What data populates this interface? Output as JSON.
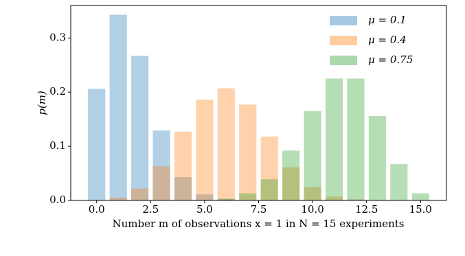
{
  "chart_data": {
    "type": "bar",
    "x": [
      0,
      1,
      2,
      3,
      4,
      5,
      6,
      7,
      8,
      9,
      10,
      11,
      12,
      13,
      14,
      15
    ],
    "series": [
      {
        "name": "μ = 0.1",
        "color": "#1f77b4",
        "values": [
          0.206,
          0.343,
          0.267,
          0.129,
          0.043,
          0.011,
          0.002,
          0.0,
          0,
          0,
          0,
          0,
          0,
          0,
          0,
          0
        ]
      },
      {
        "name": "μ = 0.4",
        "color": "#ff7f0e",
        "values": [
          0.0005,
          0.005,
          0.022,
          0.063,
          0.127,
          0.186,
          0.207,
          0.177,
          0.118,
          0.061,
          0.025,
          0.007,
          0.002,
          0.0003,
          0,
          0
        ]
      },
      {
        "name": "μ = 0.75",
        "color": "#2ca02c",
        "values": [
          0,
          0,
          0,
          0,
          0,
          0.001,
          0.003,
          0.013,
          0.039,
          0.092,
          0.165,
          0.225,
          0.225,
          0.156,
          0.067,
          0.013
        ]
      }
    ],
    "xlabel": "Number m of observations x = 1 in N = 15 experiments",
    "ylabel": "p(m)",
    "xlim": [
      -1.2,
      16.2
    ],
    "xticks": [
      {
        "value": 0,
        "label": "0.0"
      },
      2.5,
      {
        "value": 5,
        "label": "5.0"
      },
      7.5,
      {
        "value": 10,
        "label": "10.0"
      },
      12.5,
      {
        "value": 15,
        "label": "15.0"
      }
    ],
    "ylim": [
      0,
      0.36
    ],
    "yticks": [
      {
        "value": 0,
        "label": "0.0"
      },
      0.1,
      0.2,
      0.3
    ],
    "grid": false,
    "legend": "upper right",
    "bar_width": 0.8,
    "alpha": 0.35
  }
}
